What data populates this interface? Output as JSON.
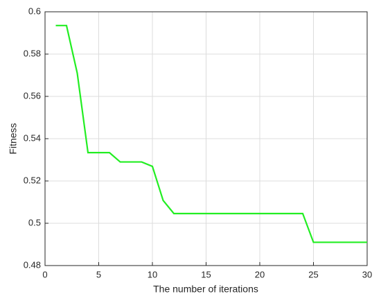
{
  "chart_data": {
    "type": "line",
    "x_label": "The number of iterations",
    "y_label": "Fitness",
    "x": [
      1,
      2,
      3,
      4,
      5,
      6,
      7,
      8,
      9,
      10,
      11,
      12,
      13,
      14,
      15,
      16,
      17,
      18,
      19,
      20,
      21,
      22,
      23,
      24,
      25,
      26,
      27,
      28,
      29,
      30
    ],
    "series": [
      {
        "color": "#22ee22",
        "values": [
          0.5935,
          0.5935,
          0.571,
          0.5334,
          0.5334,
          0.5334,
          0.529,
          0.529,
          0.529,
          0.5269,
          0.5108,
          0.5046,
          0.5046,
          0.5046,
          0.5046,
          0.5046,
          0.5046,
          0.5046,
          0.5046,
          0.5046,
          0.5046,
          0.5046,
          0.5046,
          0.5046,
          0.491,
          0.491,
          0.491,
          0.491,
          0.491,
          0.491
        ]
      }
    ],
    "xlim": [
      0,
      30
    ],
    "xticks": [
      0,
      5,
      10,
      15,
      20,
      25,
      30
    ],
    "ylim": [
      0.48,
      0.6
    ],
    "yticks": [
      0.48,
      0.5,
      0.52,
      0.54,
      0.56,
      0.58,
      0.6
    ],
    "grid": true
  }
}
